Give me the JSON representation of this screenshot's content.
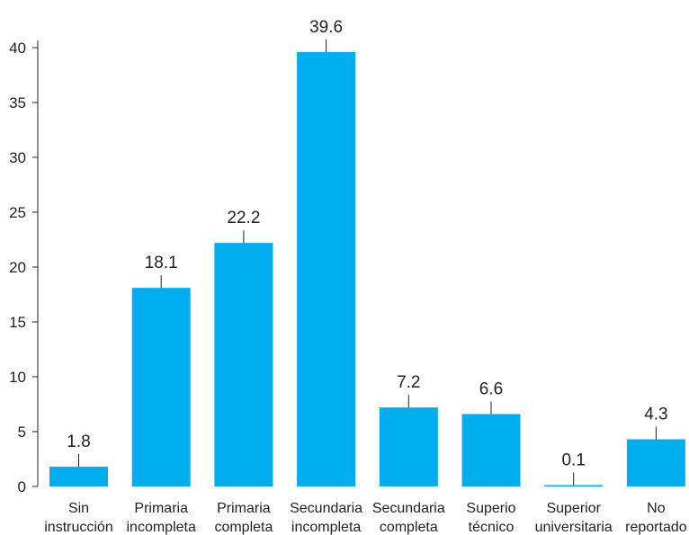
{
  "chart_data": {
    "type": "bar",
    "categories": [
      [
        "Sin",
        "instrucción"
      ],
      [
        "Primaria",
        "incompleta"
      ],
      [
        "Primaria",
        "completa"
      ],
      [
        "Secundaria",
        "incompleta"
      ],
      [
        "Secundaria",
        "completa"
      ],
      [
        "Superio",
        "técnico"
      ],
      [
        "Superior",
        "universitaria"
      ],
      [
        "No",
        "reportado"
      ]
    ],
    "values": [
      1.8,
      18.1,
      22.2,
      39.6,
      7.2,
      6.6,
      0.1,
      4.3
    ],
    "data_labels": [
      "1.8",
      "18.1",
      "22.2",
      "39.6",
      "7.2",
      "6.6",
      "0.1",
      "4.3"
    ],
    "y_ticks": [
      "0",
      "5",
      "10",
      "15",
      "20",
      "25",
      "30",
      "35",
      "40"
    ],
    "ylim": [
      0,
      40
    ],
    "grid": false,
    "bar_color": "#00aeef",
    "title": "",
    "xlabel": "",
    "ylabel": ""
  }
}
